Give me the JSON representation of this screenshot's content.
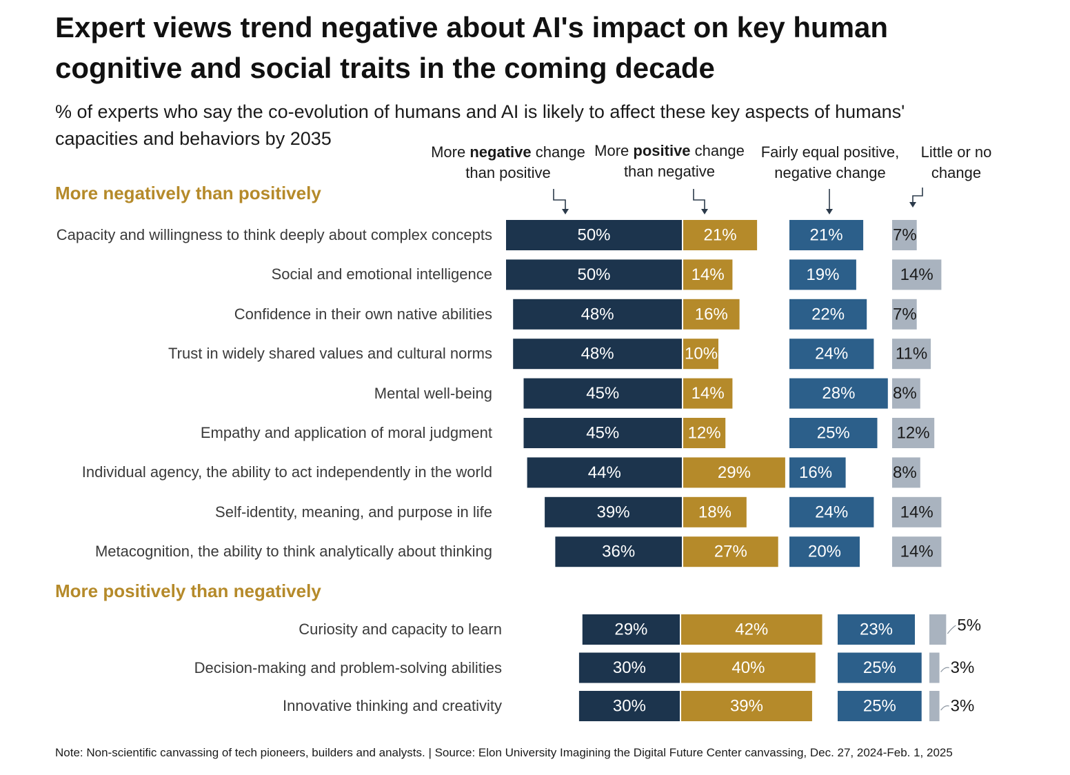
{
  "title": "Expert views trend negative about AI's impact on key human cognitive and social traits in the coming decade",
  "subtitle": "% of experts who say the co-evolution of humans and AI is likely to affect these key aspects of humans' capacities and behaviors by 2035",
  "column_headers": {
    "negative": {
      "pre": "More ",
      "bold": "negative",
      "post": " change than positive"
    },
    "positive": {
      "pre": "More ",
      "bold": "positive",
      "post": " change than negative"
    },
    "equal": "Fairly equal positive, negative change",
    "little": "Little or no change"
  },
  "note": "Note: Non-scientific canvassing of tech pioneers, builders and analysts. | Source: Elon University Imagining the Digital Future Center canvassing,  Dec. 27, 2024-Feb. 1, 2025",
  "colors": {
    "negative": "#1c344d",
    "positive": "#b58a2a",
    "equal": "#2c5f8a",
    "little": "#a9b3bf",
    "section": "#b58a2a"
  },
  "chart_data": {
    "type": "bar",
    "orientation": "horizontal",
    "value_suffix": "%",
    "series": [
      {
        "key": "negative",
        "name": "More negative change than positive"
      },
      {
        "key": "positive",
        "name": "More positive change than negative"
      },
      {
        "key": "equal",
        "name": "Fairly equal positive, negative change"
      },
      {
        "key": "little",
        "name": "Little or no change"
      }
    ],
    "groups": [
      {
        "heading": "More negatively than positively",
        "rows": [
          {
            "label": "Capacity and willingness to think deeply about complex concepts",
            "negative": 50,
            "positive": 21,
            "equal": 21,
            "little": 7
          },
          {
            "label": "Social and emotional intelligence",
            "negative": 50,
            "positive": 14,
            "equal": 19,
            "little": 14
          },
          {
            "label": "Confidence in their own native abilities",
            "negative": 48,
            "positive": 16,
            "equal": 22,
            "little": 7
          },
          {
            "label": "Trust in widely shared values and cultural norms",
            "negative": 48,
            "positive": 10,
            "equal": 24,
            "little": 11
          },
          {
            "label": "Mental well-being",
            "negative": 45,
            "positive": 14,
            "equal": 28,
            "little": 8
          },
          {
            "label": "Empathy and application of moral judgment",
            "negative": 45,
            "positive": 12,
            "equal": 25,
            "little": 12
          },
          {
            "label": "Individual agency, the ability to act independently in the world",
            "negative": 44,
            "positive": 29,
            "equal": 16,
            "little": 8
          },
          {
            "label": "Self-identity, meaning, and purpose in life",
            "negative": 39,
            "positive": 18,
            "equal": 24,
            "little": 14
          },
          {
            "label": "Metacognition, the ability to think analytically about thinking",
            "negative": 36,
            "positive": 27,
            "equal": 20,
            "little": 14
          }
        ]
      },
      {
        "heading": "More positively than negatively",
        "rows": [
          {
            "label": "Curiosity and capacity to learn",
            "negative": 29,
            "positive": 42,
            "equal": 23,
            "little": 5
          },
          {
            "label": "Decision-making and problem-solving abilities",
            "negative": 30,
            "positive": 40,
            "equal": 25,
            "little": 3
          },
          {
            "label": "Innovative thinking and creativity",
            "negative": 30,
            "positive": 39,
            "equal": 25,
            "little": 3
          }
        ]
      }
    ]
  }
}
